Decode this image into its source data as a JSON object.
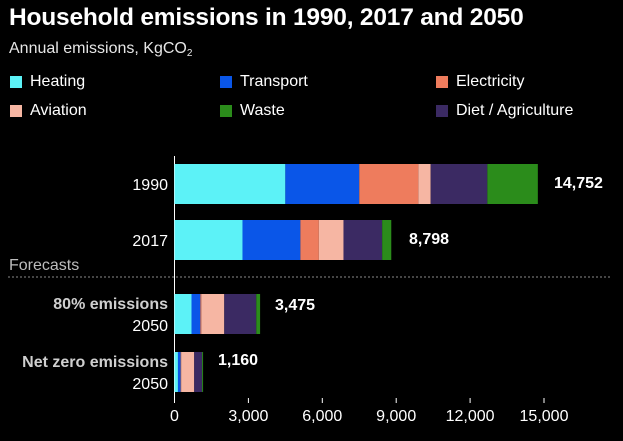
{
  "chart_data": {
    "type": "bar",
    "orientation": "horizontal",
    "stacked": true,
    "title": "Household emissions in 1990, 2017 and 2050",
    "subtitle": "Annual emissions, KgCO",
    "subtitle_sub": "2",
    "section_label": "Forecasts",
    "categories": [
      {
        "label_top": "",
        "label": "1990",
        "total_label": "14,752"
      },
      {
        "label_top": "",
        "label": "2017",
        "total_label": "8,798"
      },
      {
        "label_top": "80% emissions",
        "label": "2050",
        "total_label": "3,475"
      },
      {
        "label_top": "Net zero emissions",
        "label": "2050",
        "total_label": "1,160"
      }
    ],
    "series": [
      {
        "name": "Heating",
        "color": "#5CF2F7",
        "values": [
          4500,
          2760,
          690,
          140
        ]
      },
      {
        "name": "Transport",
        "color": "#0A56E8",
        "values": [
          3000,
          2350,
          360,
          110
        ]
      },
      {
        "name": "Electricity",
        "color": "#EE7C5D",
        "values": [
          2400,
          750,
          40,
          20
        ]
      },
      {
        "name": "Aviation",
        "color": "#F6B6A3",
        "values": [
          500,
          1000,
          930,
          530
        ]
      },
      {
        "name": "Diet / Agriculture",
        "color": "#3B2A63",
        "values": [
          2300,
          1570,
          1300,
          320
        ]
      },
      {
        "name": "Waste",
        "color": "#2B8C1B",
        "values": [
          2050,
          370,
          155,
          40
        ]
      }
    ],
    "xlim": [
      0,
      15500
    ],
    "xticks": [
      0,
      3000,
      6000,
      9000,
      12000,
      15000
    ],
    "xtick_labels": [
      "0",
      "3,000",
      "6,000",
      "9,000",
      "12,000",
      "15,000"
    ],
    "legend_placement": "top",
    "grid": false
  }
}
